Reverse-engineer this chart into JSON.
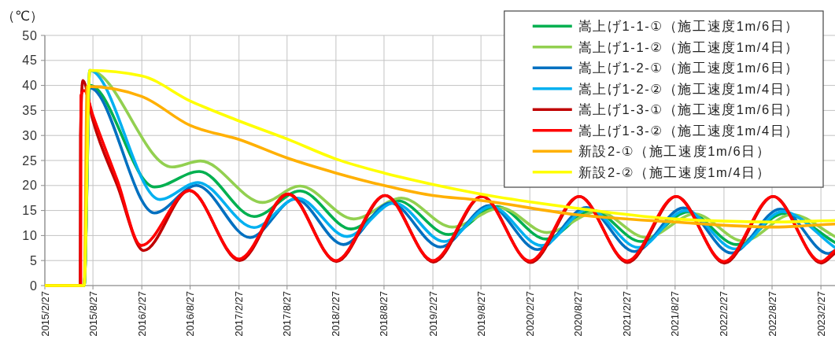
{
  "chart_data": {
    "type": "line",
    "ylabel": "（℃）",
    "xlim": [
      "2015-02-27",
      "2023-04-21"
    ],
    "xticks": [
      {
        "value": "2015-02-27",
        "label": "2015/2/27"
      },
      {
        "value": "2015-08-27",
        "label": "2015/8/27"
      },
      {
        "value": "2016-02-27",
        "label": "2016/2/27"
      },
      {
        "value": "2016-08-27",
        "label": "2016/8/27"
      },
      {
        "value": "2017-02-27",
        "label": "2017/2/27"
      },
      {
        "value": "2017-08-27",
        "label": "2017/8/27"
      },
      {
        "value": "2018-02-27",
        "label": "2018/2/27"
      },
      {
        "value": "2018-08-27",
        "label": "2018/8/27"
      },
      {
        "value": "2019-02-27",
        "label": "2019/2/27"
      },
      {
        "value": "2019-08-27",
        "label": "2019/8/27"
      },
      {
        "value": "2020-02-27",
        "label": "2020/2/27"
      },
      {
        "value": "2020-08-27",
        "label": "2020/8/27"
      },
      {
        "value": "2021-02-27",
        "label": "2021/2/27"
      },
      {
        "value": "2021-08-27",
        "label": "2021/8/27"
      },
      {
        "value": "2022-02-27",
        "label": "2022/2/27"
      },
      {
        "value": "2022-08-27",
        "label": "2022/8/27"
      },
      {
        "value": "2023-02-27",
        "label": "2023/2/27"
      }
    ],
    "ylim": [
      0,
      50
    ],
    "yticks": [
      0,
      5,
      10,
      15,
      20,
      25,
      30,
      35,
      40,
      45,
      50
    ],
    "grid": true,
    "legend": "top right",
    "series": [
      {
        "name": "嵩上げ1-1-①（施工速度1m/6日）",
        "color": "#00b050",
        "x": [
          "2015-02-27",
          "2015-07-25",
          "2015-08-15",
          "2016-04-15",
          "2016-09-30",
          "2017-04-25",
          "2017-10-15",
          "2018-04-25",
          "2018-10-15",
          "2019-04-27",
          "2019-10-27",
          "2020-04-27",
          "2020-10-20",
          "2021-04-20",
          "2021-10-15",
          "2022-04-15",
          "2022-10-10",
          "2023-04-21"
        ],
        "values": [
          0,
          0,
          40,
          19.7,
          22.8,
          13.8,
          18.9,
          11.3,
          17,
          10.2,
          15.8,
          9.3,
          15,
          8.8,
          14.7,
          8.2,
          14.4,
          8.6
        ]
      },
      {
        "name": "嵩上げ1-1-②（施工速度1m/4日）",
        "color": "#92d050",
        "x": [
          "2015-02-27",
          "2015-07-25",
          "2015-08-15",
          "2016-06-20",
          "2016-10-05",
          "2017-05-27",
          "2017-10-15",
          "2018-05-05",
          "2018-11-01",
          "2019-05-10",
          "2019-11-10",
          "2020-05-01",
          "2020-11-10",
          "2021-05-10",
          "2021-11-10",
          "2022-05-10",
          "2022-11-10",
          "2023-04-21"
        ],
        "values": [
          0,
          0,
          43,
          23.7,
          24.9,
          16.6,
          19.9,
          13.3,
          17.5,
          11.7,
          15.5,
          10.6,
          14.8,
          9.6,
          14.3,
          8.9,
          14.2,
          9.8
        ]
      },
      {
        "name": "嵩上げ1-2-①（施工速度1m/6日）",
        "color": "#0070c0",
        "x": [
          "2015-02-27",
          "2015-07-25",
          "2015-08-15",
          "2016-04-15",
          "2016-09-20",
          "2017-04-10",
          "2017-09-27",
          "2018-03-27",
          "2018-09-20",
          "2019-03-27",
          "2019-09-27",
          "2020-03-27",
          "2020-09-27",
          "2021-03-27",
          "2021-09-27",
          "2022-03-27",
          "2022-09-27",
          "2023-03-27",
          "2023-04-21"
        ],
        "values": [
          0,
          0,
          39.5,
          14.5,
          20,
          9.6,
          17.3,
          8.2,
          16.5,
          7.7,
          16,
          7.2,
          15.6,
          6.8,
          15.5,
          6.5,
          15.3,
          6.4,
          7
        ]
      },
      {
        "name": "嵩上げ1-2-②（施工速度1m/4日）",
        "color": "#00b0f0",
        "x": [
          "2015-02-27",
          "2015-07-25",
          "2015-08-15",
          "2016-05-05",
          "2016-09-25",
          "2017-04-25",
          "2017-10-05",
          "2018-04-10",
          "2018-10-05",
          "2019-04-10",
          "2019-10-05",
          "2020-04-10",
          "2020-10-05",
          "2021-04-10",
          "2021-10-05",
          "2022-04-10",
          "2022-10-05",
          "2023-04-21"
        ],
        "values": [
          0,
          0,
          43,
          17.2,
          20.6,
          11.6,
          17.5,
          9.8,
          16.5,
          8.8,
          15.8,
          8,
          15.3,
          7.6,
          15,
          7.3,
          14.8,
          7.6
        ]
      },
      {
        "name": "嵩上げ1-3-①（施工速度1m/6日）",
        "color": "#c00000",
        "x": [
          "2015-02-27",
          "2015-07-10",
          "2015-07-11",
          "2015-07-20",
          "2015-08-27",
          "2015-11-27",
          "2016-03-05",
          "2016-08-24",
          "2017-03-01",
          "2017-09-01",
          "2018-03-01",
          "2018-09-01",
          "2019-03-01",
          "2019-09-01",
          "2020-03-01",
          "2020-09-01",
          "2021-03-01",
          "2021-09-01",
          "2022-03-01",
          "2022-09-01",
          "2023-03-01",
          "2023-04-21"
        ],
        "values": [
          0,
          0,
          30,
          41,
          33,
          20,
          7,
          19,
          5,
          18.3,
          4.8,
          18,
          4.7,
          17.8,
          4.6,
          17.8,
          4.6,
          17.8,
          4.5,
          17.8,
          4.5,
          6.5
        ]
      },
      {
        "name": "嵩上げ1-3-②（施工速度1m/4日）",
        "color": "#ff0000",
        "x": [
          "2015-02-27",
          "2015-07-12",
          "2015-07-13",
          "2015-07-25",
          "2015-08-27",
          "2015-11-27",
          "2016-02-25",
          "2016-08-24",
          "2017-02-27",
          "2017-08-30",
          "2018-02-27",
          "2018-08-30",
          "2019-02-27",
          "2019-08-30",
          "2020-02-27",
          "2020-08-30",
          "2021-02-27",
          "2021-08-30",
          "2022-02-27",
          "2022-08-30",
          "2023-02-27",
          "2023-04-21"
        ],
        "values": [
          0,
          0,
          38,
          39,
          34,
          21,
          8,
          19,
          5.3,
          18.3,
          5,
          18,
          5,
          17.8,
          4.9,
          17.8,
          4.9,
          17.8,
          4.8,
          17.8,
          4.8,
          7
        ]
      },
      {
        "name": "新設2-①（施工速度1m/6日）",
        "color": "#ffb000",
        "x": [
          "2015-02-27",
          "2015-07-25",
          "2015-08-05",
          "2016-02-27",
          "2016-08-27",
          "2017-02-27",
          "2017-08-27",
          "2018-02-27",
          "2018-08-27",
          "2019-02-27",
          "2019-08-15",
          "2020-08-15",
          "2021-08-25",
          "2022-09-01",
          "2023-04-21"
        ],
        "values": [
          0,
          0,
          39.8,
          37.8,
          32,
          29.2,
          25.5,
          22.5,
          20,
          18,
          17.1,
          14.2,
          12.7,
          11.7,
          12.3
        ]
      },
      {
        "name": "新設2-②（施工速度1m/4日）",
        "color": "#ffff00",
        "x": [
          "2015-02-27",
          "2015-07-25",
          "2015-08-15",
          "2016-02-27",
          "2016-08-27",
          "2017-02-27",
          "2017-08-27",
          "2018-02-27",
          "2018-08-27",
          "2019-02-27",
          "2019-08-15",
          "2020-08-15",
          "2021-08-25",
          "2022-09-01",
          "2023-04-21"
        ],
        "values": [
          0,
          0,
          43,
          41.9,
          36.9,
          32.9,
          29.3,
          25.3,
          22.5,
          20.2,
          18.4,
          15.5,
          13.3,
          12.7,
          13
        ]
      }
    ]
  }
}
